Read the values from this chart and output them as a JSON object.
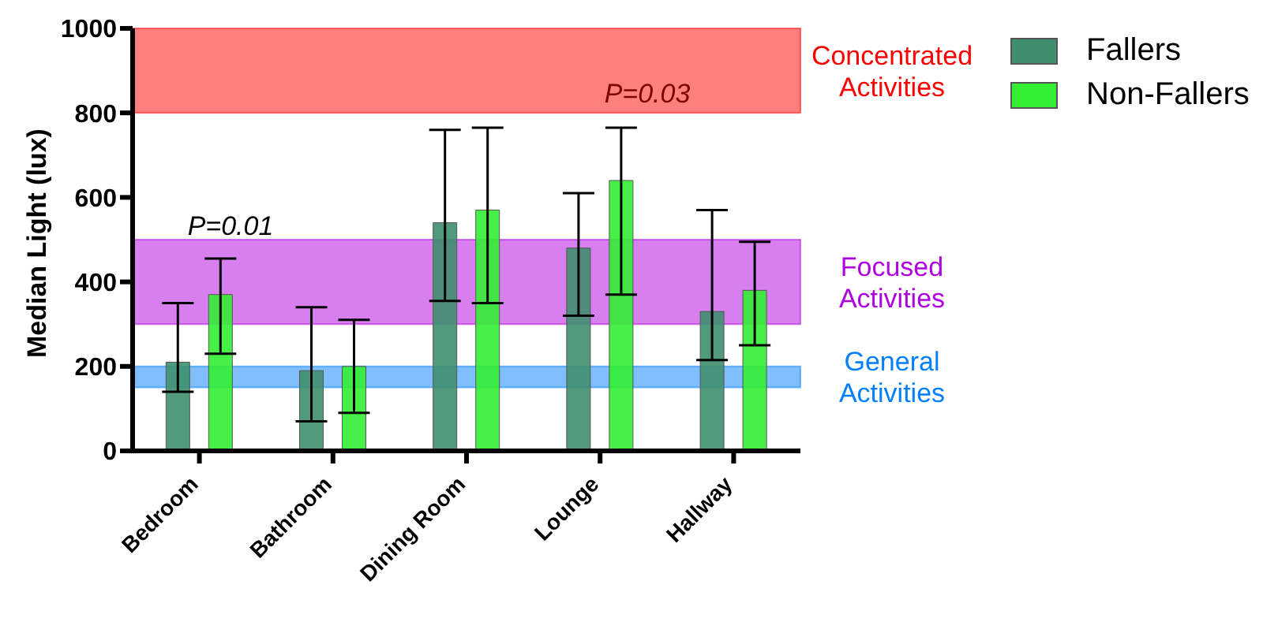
{
  "chart_data": {
    "type": "bar",
    "ylabel": "Median Light (lux)",
    "categories": [
      "Bedroom",
      "Bathroom",
      "Dining Room",
      "Lounge",
      "Hallway"
    ],
    "series": [
      {
        "name": "Fallers",
        "color": "#3f8f6e",
        "values": [
          210,
          190,
          540,
          480,
          330
        ],
        "errors": [
          [
            140,
            350
          ],
          [
            70,
            340
          ],
          [
            355,
            760
          ],
          [
            320,
            610
          ],
          [
            215,
            570
          ]
        ]
      },
      {
        "name": "Non-Fallers",
        "color": "#33ee33",
        "values": [
          370,
          200,
          570,
          640,
          380
        ],
        "errors": [
          [
            230,
            455
          ],
          [
            90,
            310
          ],
          [
            350,
            765
          ],
          [
            370,
            765
          ],
          [
            250,
            495
          ]
        ]
      }
    ],
    "ylim": [
      0,
      1000
    ],
    "yticks": [
      0,
      200,
      400,
      600,
      800,
      1000
    ],
    "bands": [
      {
        "axis": "y",
        "from": 800,
        "to": 1000,
        "label": "Concentrated Activities",
        "color": "#ff0000"
      },
      {
        "axis": "y",
        "from": 300,
        "to": 500,
        "label": "Focused Activities",
        "color": "#b000e0"
      },
      {
        "axis": "y",
        "from": 150,
        "to": 200,
        "label": "General Activities",
        "color": "#0080ff"
      }
    ],
    "annotations": [
      "P=0.01",
      "P=0.03"
    ],
    "legend": "top right",
    "grid": false
  }
}
